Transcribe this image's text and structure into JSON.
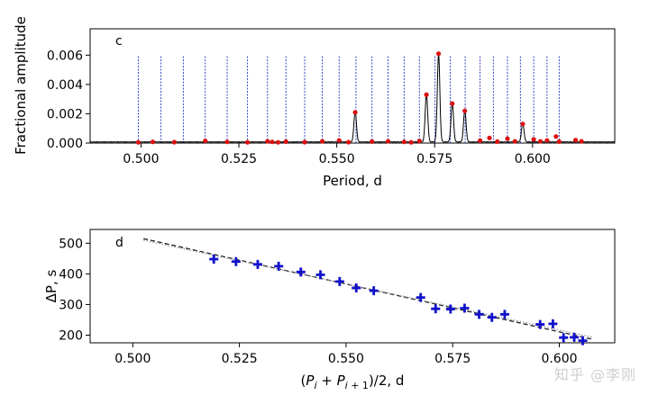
{
  "watermark": "知乎 @李刚",
  "chart_data": [
    {
      "type": "line",
      "panel_label": "c",
      "xlabel": "Period, d",
      "ylabel": "Fractional amplitude",
      "xlim": [
        0.487,
        0.621
      ],
      "ylim": [
        0.0,
        0.0078
      ],
      "xticks": [
        0.5,
        0.525,
        0.55,
        0.575,
        0.6
      ],
      "xtick_labels": [
        "0.500",
        "0.525",
        "0.550",
        "0.575",
        "0.600"
      ],
      "yticks": [
        0.0,
        0.002,
        0.004,
        0.006
      ],
      "ytick_labels": [
        "0.000",
        "0.002",
        "0.004",
        "0.006"
      ],
      "grid": false,
      "mode_markers": {
        "line_color": "#2233bb",
        "line_height": 0.006,
        "periods": [
          0.4993,
          0.5051,
          0.5108,
          0.5164,
          0.522,
          0.5272,
          0.5323,
          0.537,
          0.5418,
          0.5463,
          0.5506,
          0.5549,
          0.559,
          0.5631,
          0.5672,
          0.5711,
          0.5751,
          0.579,
          0.5828,
          0.5866,
          0.59,
          0.5936,
          0.5969,
          0.6003,
          0.6037,
          0.6068
        ]
      },
      "spectrum_peaks": [
        {
          "x": 0.5547,
          "y": 0.0021
        },
        {
          "x": 0.5729,
          "y": 0.0033
        },
        {
          "x": 0.576,
          "y": 0.0061
        },
        {
          "x": 0.5795,
          "y": 0.0027
        },
        {
          "x": 0.5827,
          "y": 0.0022
        },
        {
          "x": 0.5975,
          "y": 0.0013
        }
      ],
      "red_markers": {
        "color": "#dd1111",
        "points": [
          {
            "x": 0.4993,
            "y": 5e-05
          },
          {
            "x": 0.503,
            "y": 8e-05
          },
          {
            "x": 0.5085,
            "y": 6e-05
          },
          {
            "x": 0.5164,
            "y": 0.00015
          },
          {
            "x": 0.522,
            "y": 8e-05
          },
          {
            "x": 0.5272,
            "y": 5e-05
          },
          {
            "x": 0.5323,
            "y": 0.00012
          },
          {
            "x": 0.5335,
            "y": 8e-05
          },
          {
            "x": 0.535,
            "y": 5e-05
          },
          {
            "x": 0.537,
            "y": 0.0001
          },
          {
            "x": 0.5418,
            "y": 6e-05
          },
          {
            "x": 0.5463,
            "y": 0.00012
          },
          {
            "x": 0.5506,
            "y": 0.00018
          },
          {
            "x": 0.553,
            "y": 6e-05
          },
          {
            "x": 0.5547,
            "y": 0.0021
          },
          {
            "x": 0.559,
            "y": 0.0001
          },
          {
            "x": 0.5631,
            "y": 0.00012
          },
          {
            "x": 0.5672,
            "y": 8e-05
          },
          {
            "x": 0.569,
            "y": 5e-05
          },
          {
            "x": 0.5711,
            "y": 0.00014
          },
          {
            "x": 0.5729,
            "y": 0.0033
          },
          {
            "x": 0.576,
            "y": 0.0061
          },
          {
            "x": 0.5795,
            "y": 0.0027
          },
          {
            "x": 0.5827,
            "y": 0.0022
          },
          {
            "x": 0.5866,
            "y": 0.00016
          },
          {
            "x": 0.589,
            "y": 0.00035
          },
          {
            "x": 0.591,
            "y": 0.0001
          },
          {
            "x": 0.5936,
            "y": 0.0003
          },
          {
            "x": 0.5955,
            "y": 0.00012
          },
          {
            "x": 0.5975,
            "y": 0.0013
          },
          {
            "x": 0.6003,
            "y": 0.00025
          },
          {
            "x": 0.602,
            "y": 0.00012
          },
          {
            "x": 0.6037,
            "y": 0.00018
          },
          {
            "x": 0.606,
            "y": 0.00045
          },
          {
            "x": 0.6068,
            "y": 0.0001
          },
          {
            "x": 0.611,
            "y": 0.0002
          },
          {
            "x": 0.6125,
            "y": 0.00012
          }
        ]
      }
    },
    {
      "type": "scatter",
      "panel_label": "d",
      "xlabel": "(P_i + P_{i+1})/2, d",
      "ylabel": "ΔP, s",
      "xlim": [
        0.49,
        0.613
      ],
      "ylim": [
        175,
        545
      ],
      "xticks": [
        0.5,
        0.525,
        0.55,
        0.575,
        0.6
      ],
      "xtick_labels": [
        "0.500",
        "0.525",
        "0.550",
        "0.575",
        "0.600"
      ],
      "yticks": [
        200,
        300,
        400,
        500
      ],
      "ytick_labels": [
        "200",
        "300",
        "400",
        "500"
      ],
      "grid": false,
      "marker": "plus",
      "marker_color": "#1111cc",
      "points": [
        {
          "x": 0.519,
          "y": 448
        },
        {
          "x": 0.5242,
          "y": 440
        },
        {
          "x": 0.5293,
          "y": 431
        },
        {
          "x": 0.5342,
          "y": 425
        },
        {
          "x": 0.5394,
          "y": 406
        },
        {
          "x": 0.544,
          "y": 397
        },
        {
          "x": 0.5485,
          "y": 375
        },
        {
          "x": 0.5524,
          "y": 354
        },
        {
          "x": 0.5565,
          "y": 345
        },
        {
          "x": 0.5675,
          "y": 323
        },
        {
          "x": 0.571,
          "y": 286
        },
        {
          "x": 0.5745,
          "y": 285
        },
        {
          "x": 0.5778,
          "y": 288
        },
        {
          "x": 0.5812,
          "y": 268
        },
        {
          "x": 0.5842,
          "y": 258
        },
        {
          "x": 0.5872,
          "y": 268
        },
        {
          "x": 0.5955,
          "y": 235
        },
        {
          "x": 0.5985,
          "y": 237
        },
        {
          "x": 0.601,
          "y": 192
        },
        {
          "x": 0.6035,
          "y": 193
        },
        {
          "x": 0.6055,
          "y": 182
        }
      ],
      "fit_lines": [
        {
          "x": [
            0.5025,
            0.608
          ],
          "y": [
            515,
            186
          ],
          "style": "dashed",
          "color": "#222222"
        },
        {
          "x": [
            0.5025,
            0.608
          ],
          "y": [
            510,
            193
          ],
          "style": "dotted",
          "color": "#999999"
        }
      ]
    }
  ]
}
